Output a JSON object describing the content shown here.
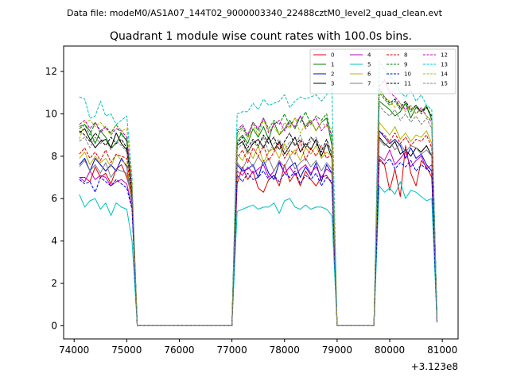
{
  "figure": {
    "suptitle": "Data file: modeM0/AS1A07_144T02_9000003340_22488cztM0_level2_quad_clean.evt",
    "background": "#ffffff"
  },
  "chart_data": {
    "type": "line",
    "title": "Quadrant 1 module wise count rates with 100.0s bins.",
    "xlabel": "",
    "ylabel": "",
    "x_offset_label": "+3.123e8",
    "xlim": [
      73800,
      81300
    ],
    "ylim": [
      -0.62,
      13.2
    ],
    "xticks": [
      74000,
      75000,
      76000,
      77000,
      78000,
      79000,
      80000,
      81000
    ],
    "xtick_labels": [
      "74000",
      "75000",
      "76000",
      "77000",
      "78000",
      "79000",
      "80000",
      "81000"
    ],
    "yticks": [
      0,
      2,
      4,
      6,
      8,
      10,
      12
    ],
    "ytick_labels": [
      "0",
      "2",
      "4",
      "6",
      "8",
      "10",
      "12"
    ],
    "grid": false,
    "legend": {
      "location": "top-right",
      "ncol": 4
    },
    "segments": [
      {
        "x_start": 74100,
        "step": 100,
        "count": 11
      },
      {
        "x_start": 75200,
        "step": 100,
        "count": 19
      },
      {
        "x_start": 77100,
        "step": 100,
        "count": 19
      },
      {
        "x_start": 79000,
        "step": 100,
        "count": 8
      },
      {
        "x_start": 79800,
        "step": 100,
        "count": 11
      }
    ],
    "series": [
      {
        "name": "0",
        "color": "#e00000",
        "dash": "solid",
        "seg_a": [
          7.0,
          7.0,
          6.8,
          7.5,
          7.0,
          7.2,
          6.7,
          7.4,
          7.6,
          7.0,
          6.1
        ],
        "seg_b": [
          6.7,
          7.5,
          6.9,
          7.3,
          6.5,
          6.3,
          6.9,
          7.1,
          6.6,
          7.6,
          6.8,
          7.2,
          6.6,
          7.3,
          6.9,
          6.6,
          7.0,
          7.1,
          6.7
        ],
        "seg_c": [
          7.9,
          7.6,
          6.4,
          7.4,
          6.1,
          8.5,
          7.2,
          6.6,
          7.8,
          7.5,
          7.0
        ],
        "end": 0.2
      },
      {
        "name": "1",
        "color": "#008000",
        "dash": "solid",
        "seg_a": [
          9.4,
          9.5,
          9.2,
          8.6,
          9.2,
          8.9,
          8.4,
          8.6,
          9.1,
          8.7,
          6.4
        ],
        "seg_b": [
          8.7,
          9.0,
          8.6,
          9.3,
          8.9,
          9.4,
          8.8,
          9.6,
          9.0,
          9.3,
          9.7,
          9.3,
          9.9,
          9.4,
          9.7,
          9.2,
          9.6,
          9.8,
          8.5
        ],
        "seg_c": [
          10.6,
          10.4,
          10.2,
          9.9,
          10.1,
          10.5,
          9.8,
          10.3,
          10.1,
          10.4,
          9.7
        ],
        "end": 0.3
      },
      {
        "name": "2",
        "color": "#0000e0",
        "dash": "solid",
        "seg_a": [
          7.6,
          7.9,
          7.3,
          7.9,
          7.6,
          7.3,
          7.6,
          7.3,
          7.9,
          7.5,
          5.8
        ],
        "seg_b": [
          7.6,
          7.3,
          7.4,
          7.6,
          7.0,
          7.8,
          7.2,
          6.9,
          7.7,
          7.2,
          7.5,
          7.7,
          7.0,
          7.5,
          7.1,
          7.7,
          6.8,
          7.6,
          7.2
        ],
        "seg_c": [
          9.2,
          8.9,
          8.6,
          8.8,
          8.5,
          7.9,
          8.4,
          7.9,
          8.1,
          7.6,
          7.3
        ],
        "end": 0.2
      },
      {
        "name": "3",
        "color": "#000000",
        "dash": "solid",
        "seg_a": [
          9.1,
          9.3,
          8.8,
          8.4,
          8.7,
          8.8,
          8.4,
          9.1,
          8.6,
          8.3,
          6.2
        ],
        "seg_b": [
          8.5,
          8.7,
          8.2,
          8.6,
          8.8,
          8.4,
          8.9,
          8.3,
          8.7,
          8.1,
          8.5,
          8.9,
          8.2,
          8.6,
          8.3,
          8.8,
          8.0,
          8.6,
          7.9
        ],
        "seg_c": [
          8.9,
          8.6,
          8.4,
          8.7,
          8.1,
          8.3,
          8.0,
          8.4,
          8.2,
          8.5,
          8.0
        ],
        "end": 0.3
      },
      {
        "name": "4",
        "color": "#c000c0",
        "dash": "solid",
        "seg_a": [
          7.0,
          6.8,
          7.3,
          6.9,
          7.1,
          7.0,
          6.6,
          6.8,
          6.9,
          6.7,
          5.6
        ],
        "seg_b": [
          7.3,
          7.1,
          7.5,
          7.2,
          7.4,
          7.6,
          7.0,
          7.3,
          7.8,
          7.2,
          7.5,
          7.1,
          7.4,
          7.6,
          7.2,
          7.5,
          7.0,
          7.4,
          7.2
        ],
        "seg_c": [
          8.0,
          7.8,
          8.3,
          7.6,
          7.9,
          8.2,
          7.5,
          7.8,
          8.0,
          7.4,
          7.6
        ],
        "end": 0.2
      },
      {
        "name": "5",
        "color": "#00c0c0",
        "dash": "solid",
        "seg_a": [
          6.2,
          5.6,
          5.9,
          6.0,
          5.5,
          5.8,
          5.2,
          5.8,
          5.6,
          5.5,
          4.0
        ],
        "seg_b": [
          5.4,
          5.5,
          5.6,
          5.7,
          5.5,
          5.6,
          5.6,
          5.8,
          5.3,
          5.9,
          6.0,
          5.6,
          5.5,
          5.7,
          5.5,
          5.6,
          5.6,
          5.5,
          5.2
        ],
        "seg_c": [
          6.6,
          6.3,
          6.5,
          6.2,
          6.8,
          6.0,
          6.4,
          6.3,
          6.1,
          5.9,
          6.0
        ],
        "end": 0.15
      },
      {
        "name": "6",
        "color": "#b5b500",
        "dash": "solid",
        "seg_a": [
          7.9,
          8.2,
          7.6,
          8.0,
          7.7,
          7.9,
          7.5,
          8.1,
          7.8,
          7.6,
          5.9
        ],
        "seg_b": [
          8.1,
          7.8,
          8.3,
          7.9,
          8.5,
          7.7,
          8.2,
          8.4,
          7.9,
          8.6,
          8.0,
          8.3,
          7.8,
          8.4,
          8.1,
          8.5,
          7.9,
          8.2,
          8.0
        ],
        "seg_c": [
          9.6,
          9.3,
          9.0,
          9.4,
          8.8,
          9.1,
          8.7,
          9.0,
          8.9,
          9.2,
          8.6
        ],
        "end": 0.3
      },
      {
        "name": "7",
        "color": "#808080",
        "dash": "solid",
        "seg_a": [
          7.5,
          7.8,
          7.3,
          7.6,
          7.2,
          7.7,
          7.0,
          7.4,
          7.3,
          7.2,
          5.8
        ],
        "seg_b": [
          7.7,
          7.4,
          7.9,
          7.5,
          8.0,
          7.6,
          7.9,
          7.3,
          7.8,
          7.5,
          8.0,
          7.4,
          7.7,
          7.9,
          7.5,
          7.8,
          7.3,
          7.7,
          7.4
        ],
        "seg_c": [
          8.8,
          8.5,
          8.7,
          8.3,
          8.6,
          8.2,
          8.5,
          8.4,
          8.1,
          8.3,
          8.0
        ],
        "end": 0.2
      },
      {
        "name": "8",
        "color": "#e00000",
        "dash": "dashed",
        "seg_a": [
          8.1,
          8.4,
          7.9,
          8.2,
          7.8,
          8.3,
          7.7,
          8.1,
          8.0,
          7.9,
          6.0
        ],
        "seg_b": [
          7.9,
          8.3,
          7.7,
          8.4,
          8.0,
          8.5,
          7.8,
          8.2,
          8.6,
          7.9,
          8.3,
          8.1,
          8.7,
          7.8,
          8.4,
          8.0,
          8.5,
          7.9,
          8.1
        ],
        "seg_c": [
          9.2,
          9.0,
          8.7,
          9.1,
          8.6,
          8.9,
          8.5,
          8.8,
          8.7,
          9.0,
          8.4
        ],
        "end": 0.25
      },
      {
        "name": "9",
        "color": "#008000",
        "dash": "dashed",
        "seg_a": [
          9.3,
          9.5,
          9.0,
          9.6,
          9.2,
          9.4,
          9.1,
          9.5,
          9.0,
          8.8,
          6.5
        ],
        "seg_b": [
          9.1,
          9.4,
          8.9,
          9.6,
          9.2,
          9.8,
          9.3,
          9.7,
          9.5,
          10.0,
          9.4,
          9.8,
          9.6,
          10.1,
          9.5,
          9.9,
          9.7,
          10.0,
          8.8
        ],
        "seg_c": [
          11.0,
          10.7,
          10.4,
          10.6,
          10.2,
          10.5,
          10.1,
          10.4,
          10.0,
          10.3,
          9.8
        ],
        "end": 0.3
      },
      {
        "name": "10",
        "color": "#0000e0",
        "dash": "dashed",
        "seg_a": [
          6.9,
          6.7,
          6.8,
          6.3,
          7.0,
          6.8,
          6.6,
          6.9,
          6.7,
          6.5,
          5.5
        ],
        "seg_b": [
          7.1,
          6.8,
          7.2,
          6.9,
          7.0,
          7.3,
          6.9,
          7.1,
          6.8,
          7.2,
          7.0,
          7.3,
          6.7,
          7.1,
          6.9,
          7.2,
          6.6,
          7.0,
          6.8
        ],
        "seg_c": [
          7.8,
          7.6,
          7.9,
          7.4,
          7.7,
          7.5,
          7.8,
          7.3,
          7.6,
          7.4,
          7.2
        ],
        "end": 0.2
      },
      {
        "name": "11",
        "color": "#000000",
        "dash": "dashed",
        "seg_a": [
          9.2,
          9.0,
          8.7,
          9.1,
          8.8,
          8.5,
          8.9,
          8.6,
          8.8,
          8.4,
          6.3
        ],
        "seg_b": [
          8.6,
          8.9,
          8.4,
          8.8,
          8.5,
          9.0,
          8.6,
          8.9,
          8.3,
          8.7,
          9.1,
          8.5,
          8.8,
          8.4,
          8.9,
          8.6,
          8.2,
          8.8,
          8.1
        ],
        "seg_c": [
          11.2,
          10.8,
          10.5,
          10.7,
          10.3,
          10.6,
          10.2,
          10.4,
          10.1,
          10.3,
          9.9
        ],
        "end": 0.35
      },
      {
        "name": "12",
        "color": "#c000c0",
        "dash": "dashed",
        "seg_a": [
          9.5,
          9.7,
          9.3,
          9.6,
          9.1,
          9.4,
          9.0,
          9.3,
          9.2,
          8.9,
          6.6
        ],
        "seg_b": [
          9.2,
          9.5,
          9.0,
          9.6,
          9.3,
          9.8,
          9.1,
          9.5,
          9.7,
          9.2,
          9.6,
          9.4,
          9.9,
          9.3,
          9.6,
          9.8,
          9.2,
          9.5,
          9.0
        ],
        "seg_c": [
          11.3,
          11.6,
          11.0,
          10.8,
          10.5,
          10.2,
          10.4,
          10.0,
          10.3,
          9.9,
          9.6
        ],
        "end": 0.3
      },
      {
        "name": "13",
        "color": "#00c0c0",
        "dash": "dashed",
        "seg_a": [
          10.8,
          10.7,
          9.8,
          9.9,
          10.6,
          9.9,
          10.0,
          9.5,
          9.7,
          9.9,
          7.0
        ],
        "seg_b": [
          10.0,
          10.1,
          10.1,
          10.5,
          10.2,
          10.7,
          10.4,
          10.5,
          10.6,
          10.9,
          10.3,
          10.6,
          10.8,
          10.7,
          10.8,
          10.9,
          10.6,
          10.9,
          11.2
        ],
        "seg_c": [
          12.5,
          12.1,
          11.8,
          11.5,
          11.0,
          10.8,
          11.1,
          10.6,
          10.9,
          10.4,
          10.2
        ],
        "end": 0.3
      },
      {
        "name": "14",
        "color": "#b5b500",
        "dash": "dashed",
        "seg_a": [
          8.8,
          9.6,
          9.7,
          9.4,
          9.6,
          9.3,
          9.0,
          9.5,
          9.2,
          9.3,
          6.8
        ],
        "seg_b": [
          8.9,
          9.3,
          8.8,
          9.5,
          9.0,
          9.7,
          9.2,
          9.4,
          9.0,
          9.6,
          9.3,
          9.8,
          9.1,
          9.5,
          9.7,
          9.2,
          9.6,
          9.4,
          9.3
        ],
        "seg_c": [
          11.1,
          10.8,
          10.6,
          10.3,
          10.5,
          10.1,
          10.4,
          10.0,
          10.2,
          9.9,
          9.7
        ],
        "end": 0.3
      },
      {
        "name": "15",
        "color": "#808080",
        "dash": "dashed",
        "seg_a": [
          8.7,
          8.9,
          8.4,
          8.9,
          8.6,
          8.8,
          8.3,
          8.7,
          8.5,
          8.2,
          6.4
        ],
        "seg_b": [
          8.3,
          8.6,
          8.1,
          8.7,
          8.4,
          8.9,
          8.2,
          8.6,
          8.8,
          8.3,
          8.7,
          8.5,
          9.0,
          8.4,
          8.7,
          8.9,
          8.3,
          8.6,
          8.2
        ],
        "seg_c": [
          10.4,
          10.1,
          9.9,
          10.2,
          9.7,
          10.0,
          9.6,
          9.9,
          9.5,
          9.8,
          9.3
        ],
        "end": 0.25
      }
    ]
  }
}
